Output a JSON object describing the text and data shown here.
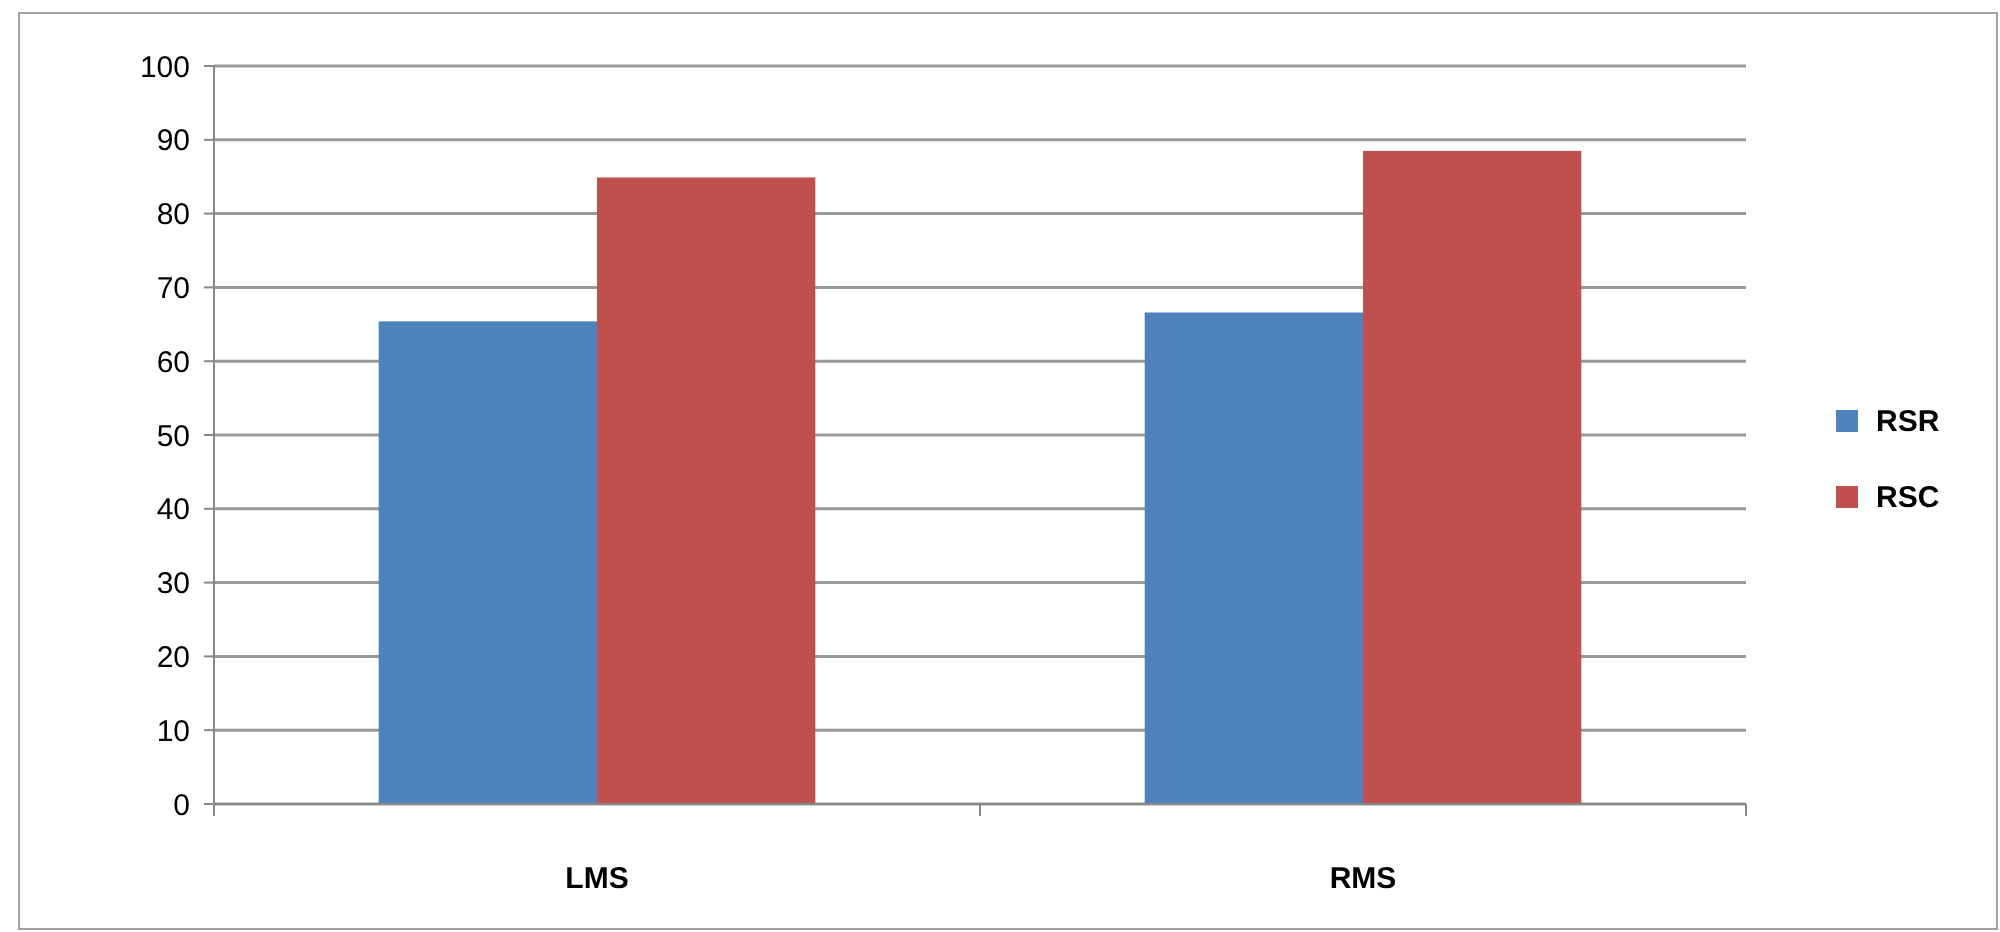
{
  "chart_data": {
    "type": "bar",
    "categories": [
      "LMS",
      "RMS"
    ],
    "series": [
      {
        "name": "RSR",
        "color": "#4f81bd",
        "values": [
          65.4,
          66.6
        ]
      },
      {
        "name": "RSC",
        "color": "#c0504d",
        "values": [
          84.9,
          88.5
        ]
      }
    ],
    "ylim": [
      0,
      100
    ],
    "yticks": [
      0,
      10,
      20,
      30,
      40,
      50,
      60,
      70,
      80,
      90,
      100
    ],
    "grid": "y",
    "legend": "right"
  }
}
